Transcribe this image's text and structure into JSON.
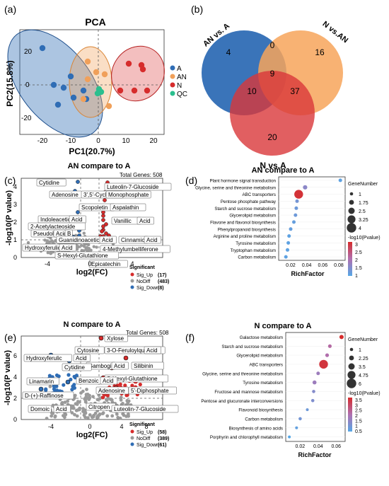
{
  "panel_letters": {
    "a": "(a)",
    "b": "(b)",
    "c": "(c)",
    "d": "(d)",
    "e": "(e)",
    "f": "(f)"
  },
  "pca": {
    "title": "PCA",
    "xlabel": "PC1(20.7%)",
    "ylabel": "PC2(15.8%)",
    "xticks": [
      "-20",
      "-10",
      "0",
      "10",
      "20"
    ],
    "yticks": [
      "20",
      "0",
      "-20"
    ],
    "legend": [
      {
        "label": "A",
        "color": "#2f6db5"
      },
      {
        "label": "AN",
        "color": "#f0a05a"
      },
      {
        "label": "N",
        "color": "#d62c2c"
      },
      {
        "label": "QC",
        "color": "#2bbf8e"
      }
    ]
  },
  "venn": {
    "labels": [
      "AN vs. A",
      "N vs.AN",
      "N vs.A"
    ],
    "counts": [
      "4",
      "0",
      "16",
      "9",
      "10",
      "37",
      "20"
    ],
    "colors": [
      "#2f6db5",
      "#f7a55a",
      "#d9373a"
    ]
  },
  "volcano_c": {
    "title": "AN compare to A",
    "total": "Total Genes: 508",
    "xlabel": "log2(FC)",
    "ylabel": "-log10(P value)",
    "xticks": [
      "-4",
      "0",
      "4"
    ],
    "yticks": [
      "0",
      "1",
      "2",
      "3",
      "4"
    ],
    "labels": [
      "Cytidine",
      "Adenosine",
      "3',5'-Cyclic",
      "Luteolin-7-Glucoside",
      "Monophosphate",
      "Scopoletin",
      "Aspalathin",
      "Indoleacetic",
      "Acid",
      "2-Acetylacteoside",
      "Pseudolaric",
      "Acid",
      "B",
      "Vanillic",
      "Acid",
      "Guanidinoacetic",
      "Acid",
      "Cinnamic",
      "Acid",
      "Hydroxyferulic",
      "Acid",
      "4-Methylumbelliferone",
      "S-Hexyl-Glutathione",
      "Epicatechin"
    ],
    "legend_title": "Significant",
    "legend": [
      {
        "label": "Sig_Up",
        "count": "(17)",
        "color": "#d62c2c"
      },
      {
        "label": "NoDiff",
        "count": "(483)",
        "color": "#9a9a9a"
      },
      {
        "label": "Sig_Down",
        "count": "(8)",
        "color": "#2f6db5"
      }
    ]
  },
  "bubble_d": {
    "title": "AN compare to A",
    "xlabel": "RichFactor",
    "xticks": [
      "0.02",
      "0.04",
      "0.06",
      "0.08"
    ],
    "pathways": [
      "Plant hormone signal transduction",
      "Glycine, serine and threonine metabolism",
      "ABC transporters",
      "Pentose phosphate pathway",
      "Starch and sucrose metabolism",
      "Glycerolipid metabolism",
      "Flavone and flavonol biosynthesis",
      "Phenylpropanoid biosynthesis",
      "Arginine and proline metabolism",
      "Tyrosine metabolism",
      "Tryptophan metabolism",
      "Carbon metabolism"
    ],
    "rich": [
      0.082,
      0.038,
      0.03,
      0.028,
      0.027,
      0.026,
      0.024,
      0.02,
      0.018,
      0.017,
      0.016,
      0.014
    ],
    "genes": [
      1,
      1.5,
      4,
      1,
      1,
      1,
      1,
      1,
      1,
      1,
      1,
      1
    ],
    "pval": [
      0.9,
      1.5,
      3.1,
      1.2,
      1.1,
      1.1,
      1.0,
      1.0,
      0.9,
      0.9,
      0.9,
      0.9
    ],
    "size_title": "GeneNumber",
    "size_labels": [
      "1",
      "1.75",
      "2.5",
      "3.25",
      "4"
    ],
    "color_title": "-log10(Pvalue)",
    "color_labels": [
      "3",
      "2.5",
      "2",
      "1.5",
      "1"
    ]
  },
  "volcano_e": {
    "title": "N compare to A",
    "total": "Total Genes: 508",
    "xlabel": "log2(FC)",
    "ylabel": "-log10(P value)",
    "xticks": [
      "-4",
      "0",
      "4",
      "8"
    ],
    "yticks": [
      "0",
      "2",
      "4",
      "6"
    ],
    "labels": [
      "Xylose",
      "Cytosine",
      "3-O-Feruloylquinic",
      "Acid",
      "Hydroxyferulic",
      "Acid",
      "Gambogic",
      "Acid",
      "Silibinin",
      "Cytidine",
      "S-Hexyl-Glutathione",
      "Linamarin",
      "Benzoic",
      "Acid",
      "D-(+)-Raffinose",
      "Adenosine",
      "5'-Diphosphate",
      "Domoic",
      "Acid",
      "Citropen",
      "Luteolin-7-Glucoside"
    ],
    "legend_title": "Significant",
    "legend": [
      {
        "label": "Sig_Up",
        "count": "(58)",
        "color": "#d62c2c"
      },
      {
        "label": "NoDiff",
        "count": "(389)",
        "color": "#9a9a9a"
      },
      {
        "label": "Sig_Down",
        "count": "(61)",
        "color": "#2f6db5"
      }
    ]
  },
  "bubble_f": {
    "title": "N compare to A",
    "xlabel": "RichFactor",
    "xticks": [
      "0.02",
      "0.04",
      "0.06"
    ],
    "pathways": [
      "Galactose metabolism",
      "Starch and sucrose metabolism",
      "Glycerolipid metabolism",
      "ABC transporters",
      "Glycine, serine and threonine metabolism",
      "Tyrosine metabolism",
      "Fructose and mannose metabolism",
      "Pentose and glucuronate interconversions",
      "Flavonoid biosynthesis",
      "Carbon metabolism",
      "Biosynthesis of amino acids",
      "Porphyrin and chlorophyll metabolism"
    ],
    "rich": [
      0.066,
      0.053,
      0.05,
      0.046,
      0.04,
      0.036,
      0.035,
      0.034,
      0.028,
      0.02,
      0.016,
      0.008
    ],
    "genes": [
      2.2,
      1.7,
      1.7,
      6,
      1.5,
      1.9,
      1.3,
      1.3,
      1,
      1.3,
      1,
      1
    ],
    "pval": [
      3.6,
      2.2,
      2.1,
      3.4,
      1.7,
      1.7,
      1.3,
      1.2,
      0.9,
      1.0,
      0.7,
      0.5
    ],
    "size_title": "GeneNumber",
    "size_labels": [
      "1",
      "2.25",
      "3.5",
      "4.75",
      "6"
    ],
    "color_title": "-log10(Pvalue)",
    "color_labels": [
      "3.5",
      "3",
      "2.5",
      "2",
      "1.5",
      "1",
      "0.5"
    ]
  }
}
